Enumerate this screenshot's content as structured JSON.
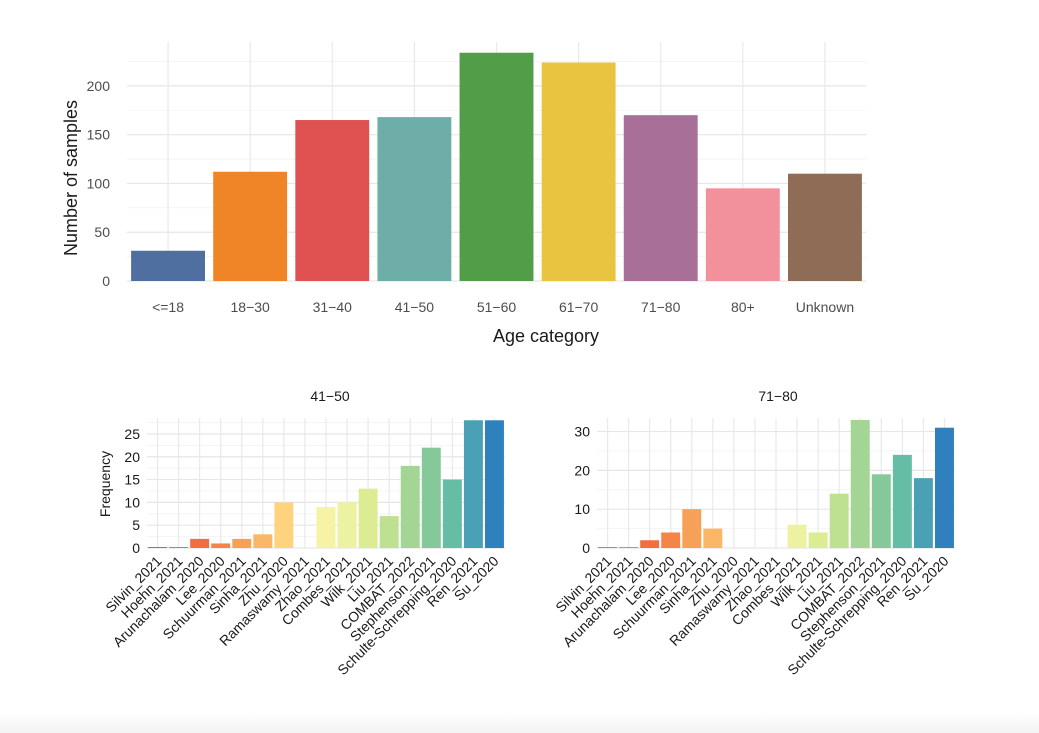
{
  "chart_data": [
    {
      "type": "bar",
      "title": "",
      "xlabel": "Age category",
      "ylabel": "Number of samples",
      "categories": [
        "<=18",
        "18−30",
        "31−40",
        "41−50",
        "51−60",
        "61−70",
        "71−80",
        "80+",
        "Unknown"
      ],
      "values": [
        31,
        112,
        165,
        168,
        234,
        224,
        170,
        95,
        110
      ],
      "colors": [
        "#4e6fa0",
        "#f08527",
        "#e05252",
        "#6daea9",
        "#529d48",
        "#e9c440",
        "#a87098",
        "#f2909b",
        "#8e6c55"
      ],
      "yticks": [
        0,
        50,
        100,
        150,
        200
      ],
      "ylim": [
        0,
        245
      ],
      "grid": true,
      "legend": "none"
    },
    {
      "type": "bar",
      "title": "41−50",
      "xlabel": "",
      "ylabel": "Frequency",
      "categories": [
        "Silvin_2021",
        "Hoehn_2021",
        "Arunachalam_2020",
        "Lee_2020",
        "Schuurman_2021",
        "Sinha_2021",
        "Zhu_2020",
        "Ramaswamy_2021",
        "Zhao_2021",
        "Combes_2021",
        "Wilk_2021",
        "Liu_2021",
        "COMBAT_2022",
        "Stephenson_2021",
        "Schulte-Schrepping_2020",
        "Ren_2021",
        "Su_2020"
      ],
      "values": [
        0.2,
        0.2,
        2,
        1,
        2,
        3,
        10,
        0,
        9,
        10,
        13,
        7,
        18,
        22,
        15,
        28,
        28
      ],
      "colors": [
        "#e9463a",
        "#f05c3b",
        "#f26d42",
        "#f4844a",
        "#f7a158",
        "#fab767",
        "#fdd37e",
        "#fde99a",
        "#f6f3a4",
        "#ecf2a0",
        "#dcec93",
        "#bde190",
        "#a3d595",
        "#85c99a",
        "#64bda4",
        "#4aa0b4",
        "#2f81bd"
      ],
      "yticks": [
        0,
        5,
        10,
        15,
        20,
        25
      ],
      "ylim": [
        0,
        28.5
      ],
      "grid": true,
      "legend": "none"
    },
    {
      "type": "bar",
      "title": "71−80",
      "xlabel": "",
      "ylabel": "",
      "categories": [
        "Silvin_2021",
        "Hoehn_2021",
        "Arunachalam_2020",
        "Lee_2020",
        "Schuurman_2021",
        "Sinha_2021",
        "Zhu_2020",
        "Ramaswamy_2021",
        "Zhao_2021",
        "Combes_2021",
        "Wilk_2021",
        "Liu_2021",
        "COMBAT_2022",
        "Stephenson_2021",
        "Schulte-Schrepping_2020",
        "Ren_2021",
        "Su_2020"
      ],
      "values": [
        0.2,
        0.2,
        2,
        4,
        10,
        5,
        0,
        0,
        0,
        6,
        4,
        14,
        33,
        19,
        24,
        18,
        31
      ],
      "colors": [
        "#e9463a",
        "#f05c3b",
        "#f26d42",
        "#f4844a",
        "#f7a158",
        "#fab767",
        "#fdd37e",
        "#fde99a",
        "#f6f3a4",
        "#ecf2a0",
        "#dcec93",
        "#bde190",
        "#a3d595",
        "#85c99a",
        "#64bda4",
        "#4aa0b4",
        "#2f81bd"
      ],
      "yticks": [
        0,
        10,
        20,
        30
      ],
      "ylim": [
        0,
        33.5
      ],
      "grid": true,
      "legend": "none"
    }
  ]
}
